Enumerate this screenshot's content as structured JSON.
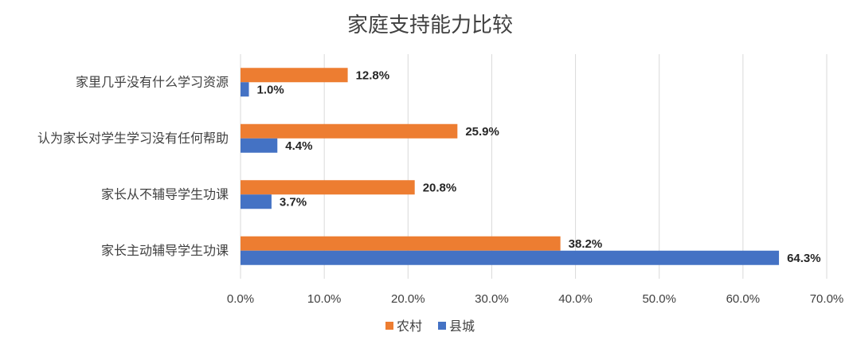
{
  "chart_data": {
    "type": "bar",
    "orientation": "horizontal",
    "title": "家庭支持能力比较",
    "categories": [
      "家里几乎没有什么学习资源",
      "认为家长对学生学习没有任何帮助",
      "家长从不辅导学生功课",
      "家长主动辅导学生功课"
    ],
    "series": [
      {
        "name": "农村",
        "color": "#ED7D31",
        "values": [
          12.8,
          25.9,
          20.8,
          38.2
        ],
        "labels": [
          "12.8%",
          "25.9%",
          "20.8%",
          "38.2%"
        ]
      },
      {
        "name": "县城",
        "color": "#4472C4",
        "values": [
          1.0,
          4.4,
          3.7,
          64.3
        ],
        "labels": [
          "1.0%",
          "4.4%",
          "3.7%",
          "64.3%"
        ]
      }
    ],
    "xlim": [
      0,
      70
    ],
    "xticks": [
      0,
      10,
      20,
      30,
      40,
      50,
      60,
      70
    ],
    "xtick_labels": [
      "0.0%",
      "10.0%",
      "20.0%",
      "30.0%",
      "40.0%",
      "50.0%",
      "60.0%",
      "70.0%"
    ],
    "grid": true,
    "legend_position": "bottom"
  }
}
